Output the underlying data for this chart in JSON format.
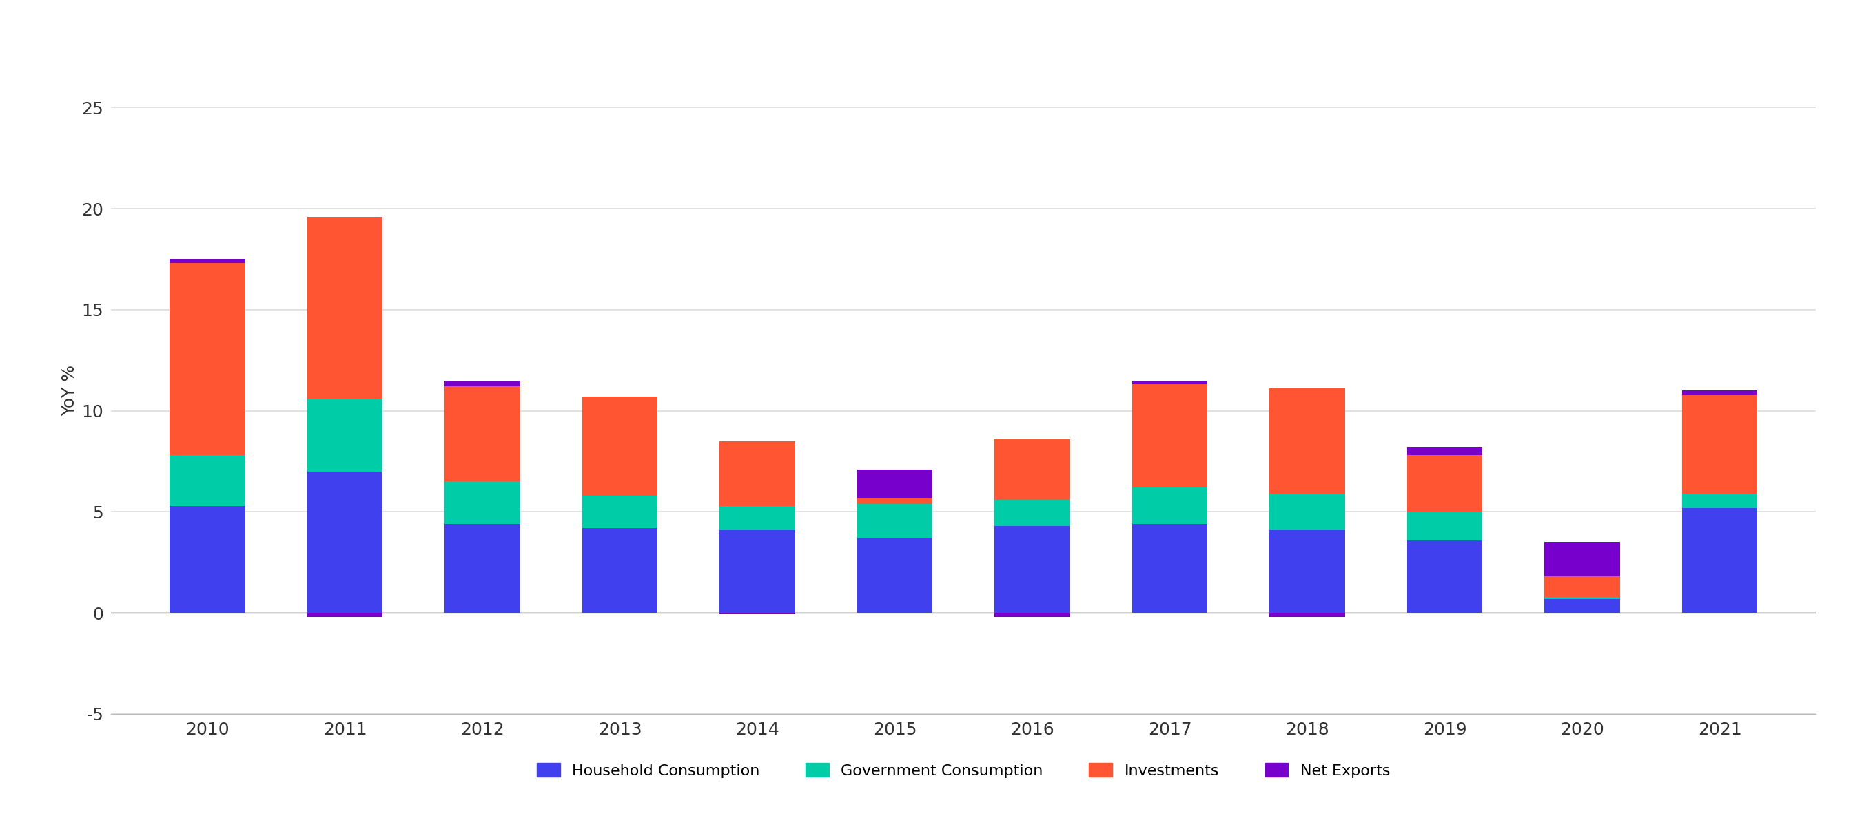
{
  "years": [
    2010,
    2011,
    2012,
    2013,
    2014,
    2015,
    2016,
    2017,
    2018,
    2019,
    2020,
    2021
  ],
  "household_consumption": [
    5.3,
    7.0,
    4.4,
    4.2,
    4.1,
    3.7,
    4.3,
    4.4,
    4.1,
    3.6,
    0.7,
    5.2
  ],
  "government_consumption": [
    2.5,
    3.6,
    2.1,
    1.6,
    1.2,
    1.7,
    1.3,
    1.8,
    1.8,
    1.4,
    0.1,
    0.7
  ],
  "investments": [
    9.5,
    9.0,
    4.7,
    4.9,
    3.2,
    0.3,
    3.0,
    5.1,
    5.2,
    2.8,
    1.0,
    4.9
  ],
  "net_exports": [
    0.2,
    -0.2,
    0.3,
    0.0,
    -0.05,
    1.4,
    -0.2,
    0.2,
    -0.2,
    0.4,
    1.7,
    0.2
  ],
  "color_household": "#4040EE",
  "color_government": "#00CCA8",
  "color_investments": "#FF5533",
  "color_net_exports": "#7700CC",
  "ylabel": "YoY %",
  "ylim_min": -5,
  "ylim_max": 27,
  "yticks": [
    -5,
    0,
    5,
    10,
    15,
    20,
    25
  ],
  "background_color": "#FFFFFF",
  "grid_color": "#DDDDDD",
  "bar_width": 0.55,
  "legend_labels": [
    "Household Consumption",
    "Government Consumption",
    "Investments",
    "Net Exports"
  ],
  "tick_fontsize": 18,
  "ylabel_fontsize": 18,
  "legend_fontsize": 16
}
